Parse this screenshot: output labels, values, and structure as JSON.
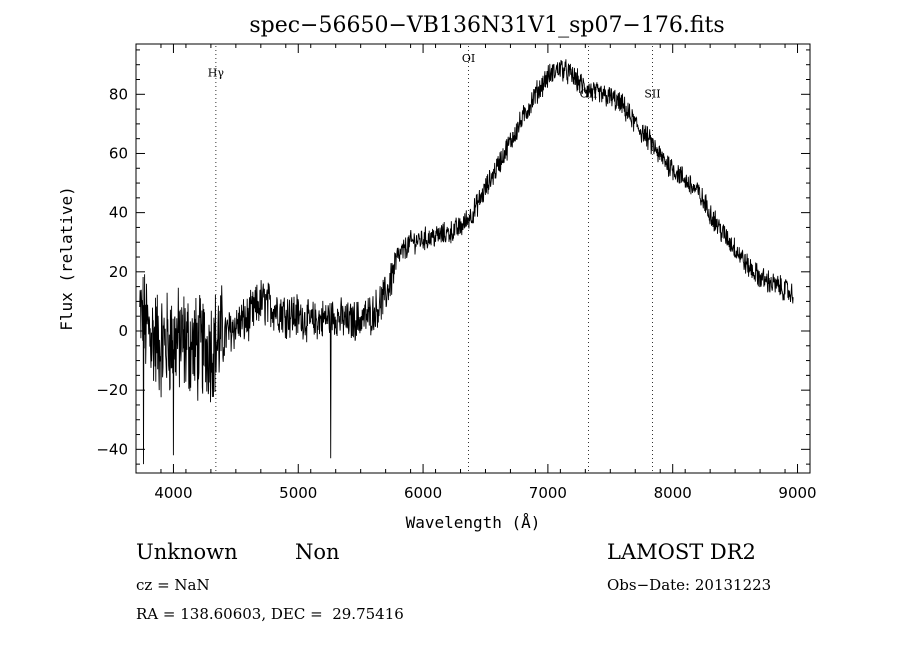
{
  "chart_data": {
    "type": "line",
    "title": "spec−56650−VB136N31V1_sp07−176.fits",
    "xlabel": "Wavelength (Å)",
    "ylabel": "Flux (relative)",
    "xlim": [
      3700,
      9100
    ],
    "ylim": [
      -48,
      97
    ],
    "xticks": [
      4000,
      5000,
      6000,
      7000,
      8000,
      9000
    ],
    "xtick_labels": [
      "4000",
      "5000",
      "6000",
      "7000",
      "8000",
      "9000"
    ],
    "yticks": [
      -40,
      -20,
      0,
      20,
      40,
      60,
      80
    ],
    "ytick_labels": [
      "−40",
      "−20",
      "0",
      "20",
      "40",
      "60",
      "80"
    ],
    "lines": [
      {
        "label": "Hγ",
        "x": 4340,
        "label_y": 86
      },
      {
        "label": "OI",
        "x": 6364,
        "label_y": 91
      },
      {
        "label": "OII",
        "x": 7325,
        "label_y": 79
      },
      {
        "label": "SII",
        "x": 7838,
        "label_y": 79
      }
    ],
    "spectrum_envelope": [
      [
        3730,
        5
      ],
      [
        3800,
        0
      ],
      [
        3900,
        -5
      ],
      [
        4000,
        -3
      ],
      [
        4100,
        -4
      ],
      [
        4200,
        -6
      ],
      [
        4300,
        -5
      ],
      [
        4400,
        -2
      ],
      [
        4500,
        2
      ],
      [
        4600,
        4
      ],
      [
        4700,
        10
      ],
      [
        4800,
        8
      ],
      [
        4900,
        6
      ],
      [
        5000,
        5
      ],
      [
        5100,
        3
      ],
      [
        5200,
        4
      ],
      [
        5300,
        5
      ],
      [
        5400,
        3
      ],
      [
        5500,
        4
      ],
      [
        5600,
        6
      ],
      [
        5700,
        12
      ],
      [
        5800,
        25
      ],
      [
        5900,
        30
      ],
      [
        6000,
        31
      ],
      [
        6100,
        32
      ],
      [
        6200,
        33
      ],
      [
        6300,
        35
      ],
      [
        6400,
        40
      ],
      [
        6500,
        48
      ],
      [
        6600,
        56
      ],
      [
        6700,
        64
      ],
      [
        6800,
        72
      ],
      [
        6900,
        80
      ],
      [
        7000,
        86
      ],
      [
        7100,
        89
      ],
      [
        7200,
        86
      ],
      [
        7300,
        82
      ],
      [
        7400,
        80
      ],
      [
        7500,
        79
      ],
      [
        7600,
        76
      ],
      [
        7700,
        70
      ],
      [
        7800,
        65
      ],
      [
        7900,
        59
      ],
      [
        8000,
        55
      ],
      [
        8100,
        51
      ],
      [
        8200,
        47
      ],
      [
        8300,
        40
      ],
      [
        8400,
        33
      ],
      [
        8500,
        28
      ],
      [
        8600,
        22
      ],
      [
        8700,
        18
      ],
      [
        8800,
        16
      ],
      [
        8900,
        14
      ],
      [
        8970,
        12
      ]
    ],
    "spikes": [
      [
        5260,
        -43
      ],
      [
        3760,
        -45
      ],
      [
        4000,
        -42
      ]
    ]
  },
  "info": {
    "class": "Unknown",
    "subclass": "Non",
    "survey": "LAMOST DR2",
    "cz": "cz = NaN",
    "obs_date": "Obs−Date: 20131223",
    "coords": "RA = 138.60603, DEC =  29.75416"
  }
}
